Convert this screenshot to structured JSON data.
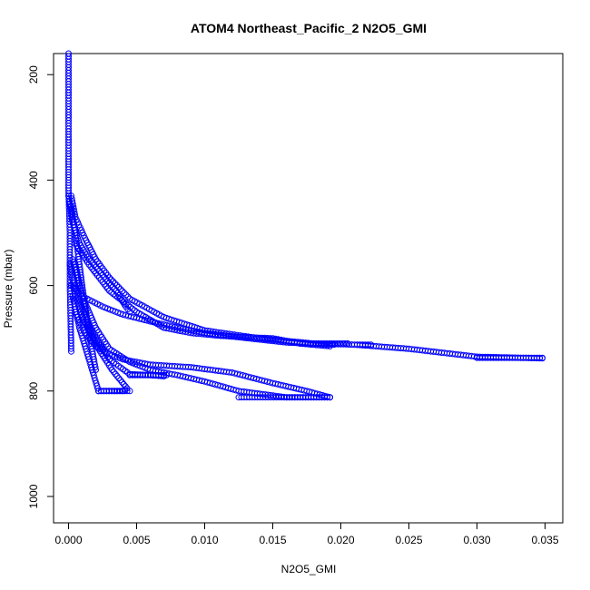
{
  "chart_data": {
    "type": "scatter",
    "title": "ATOM4 Northeast_Pacific_2 N2O5_GMI",
    "xlabel": "N2O5_GMI",
    "ylabel": "Pressure (mbar)",
    "xlim": [
      -0.0011,
      0.0363
    ],
    "ylim": [
      1050,
      160
    ],
    "y_reversed": true,
    "grid": false,
    "legend": "none",
    "marker": "open-circle",
    "color": "#0000ff",
    "x_ticks": [
      "0.000",
      "0.005",
      "0.010",
      "0.015",
      "0.020",
      "0.025",
      "0.030",
      "0.035"
    ],
    "x_tick_values": [
      0,
      0.005,
      0.01,
      0.015,
      0.02,
      0.025,
      0.03,
      0.035
    ],
    "y_ticks": [
      "200",
      "400",
      "600",
      "800",
      "1000"
    ],
    "y_tick_values": [
      200,
      400,
      600,
      800,
      1000
    ],
    "profiles": [
      {
        "x": [
          0.0,
          0.0,
          0.0,
          0.0,
          0.0001,
          0.0001,
          0.0002
        ],
        "y": [
          160,
          250,
          350,
          420,
          500,
          600,
          725
        ]
      },
      {
        "x": [
          0.0002,
          0.0005,
          0.0012,
          0.002,
          0.003,
          0.0045,
          0.007,
          0.01,
          0.014,
          0.018,
          0.021,
          0.025,
          0.03,
          0.0348
        ],
        "y": [
          430,
          470,
          510,
          550,
          585,
          625,
          660,
          685,
          700,
          710,
          712,
          720,
          735,
          738
        ]
      },
      {
        "x": [
          0.0002,
          0.001,
          0.0025,
          0.004,
          0.006,
          0.008,
          0.01,
          0.0125,
          0.016,
          0.0195
        ],
        "y": [
          600,
          620,
          640,
          655,
          668,
          680,
          690,
          698,
          708,
          712
        ]
      },
      {
        "x": [
          0.0005,
          0.0015,
          0.003,
          0.005,
          0.007,
          0.009,
          0.011,
          0.013,
          0.015,
          0.017,
          0.0192
        ],
        "y": [
          520,
          560,
          610,
          650,
          680,
          690,
          695,
          698,
          700,
          710,
          715
        ]
      },
      {
        "x": [
          0.0003,
          0.001,
          0.002,
          0.003,
          0.0045,
          0.006,
          0.008,
          0.01,
          0.0125,
          0.016,
          0.0192
        ],
        "y": [
          550,
          620,
          680,
          720,
          745,
          760,
          770,
          782,
          800,
          812,
          812
        ]
      },
      {
        "x": [
          0.0005,
          0.0012,
          0.002,
          0.003,
          0.004,
          0.006,
          0.009,
          0.012,
          0.015,
          0.0175,
          0.0192
        ],
        "y": [
          650,
          690,
          715,
          730,
          740,
          750,
          755,
          765,
          785,
          800,
          812
        ]
      },
      {
        "x": [
          0.0005,
          0.0012,
          0.002,
          0.003,
          0.0045,
          0.006,
          0.007
        ],
        "y": [
          600,
          660,
          700,
          740,
          768,
          770,
          772
        ]
      },
      {
        "x": [
          0.0005,
          0.001,
          0.0015,
          0.0022,
          0.0032,
          0.0043,
          0.004,
          0.003,
          0.0022
        ],
        "y": [
          560,
          620,
          680,
          720,
          760,
          795,
          800,
          800,
          800
        ]
      },
      {
        "x": [
          0.0003,
          0.0008,
          0.0015,
          0.0022
        ],
        "y": [
          620,
          680,
          740,
          800
        ]
      },
      {
        "x": [
          0.0,
          0.0003,
          0.0008,
          0.0015,
          0.0025,
          0.0035,
          0.0042,
          0.0045
        ],
        "y": [
          430,
          480,
          520,
          550,
          580,
          610,
          640,
          650
        ]
      },
      {
        "x": [
          0.0002,
          0.0006,
          0.001,
          0.0015,
          0.002
        ],
        "y": [
          450,
          520,
          600,
          690,
          760
        ]
      },
      {
        "x": [
          0.0001,
          0.0005,
          0.001,
          0.0018,
          0.0025
        ],
        "y": [
          560,
          620,
          660,
          700,
          720
        ]
      },
      {
        "x": [
          0.0178,
          0.0205
        ],
        "y": [
          710,
          710
        ]
      },
      {
        "x": [
          0.0212,
          0.0222
        ],
        "y": [
          712,
          712
        ]
      },
      {
        "x": [
          0.0125,
          0.0192
        ],
        "y": [
          812,
          812
        ]
      },
      {
        "x": [
          0.0022,
          0.0045
        ],
        "y": [
          800,
          800
        ]
      },
      {
        "x": [
          0.0045,
          0.0072
        ],
        "y": [
          770,
          770
        ]
      },
      {
        "x": [
          0.03,
          0.0348
        ],
        "y": [
          737,
          737
        ]
      }
    ]
  }
}
